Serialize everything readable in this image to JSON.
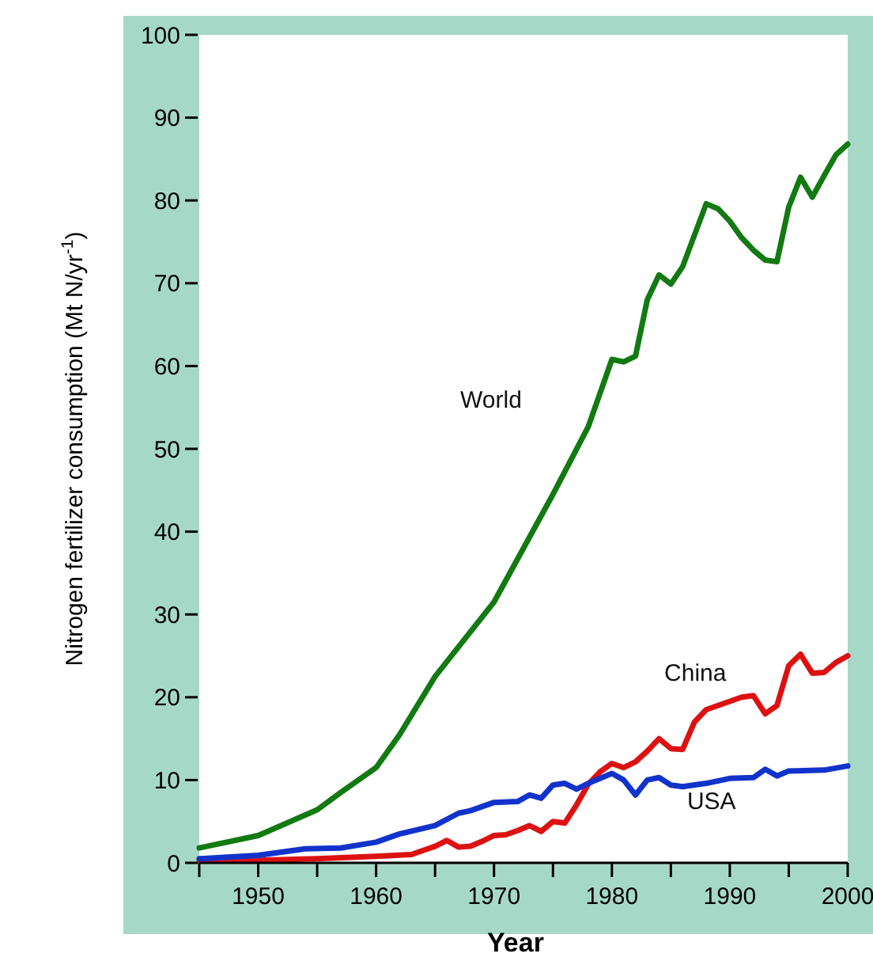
{
  "chart_data": {
    "type": "line",
    "xlabel": "Year",
    "ylabel": "Nitrogen fertilizer consumption (Mt N/yr$^{-1}$)",
    "xlim": [
      1945,
      2000
    ],
    "ylim": [
      0,
      100
    ],
    "xticks": [
      {
        "value": 1945,
        "label": null
      },
      1950,
      {
        "value": 1955,
        "label": null
      },
      1960,
      {
        "value": 1965,
        "label": null
      },
      1970,
      {
        "value": 1975,
        "label": null
      },
      1980,
      {
        "value": 1985,
        "label": null
      },
      1990,
      {
        "value": 1995,
        "label": null
      },
      2000
    ],
    "yticks": [
      0,
      10,
      20,
      30,
      40,
      50,
      60,
      70,
      80,
      90,
      100
    ],
    "grid": false,
    "legend": false,
    "line_style": "solid",
    "marker": "none",
    "series": [
      {
        "name": "World",
        "color": "#117a11",
        "x": [
          1945,
          1950,
          1955,
          1957,
          1960,
          1962,
          1965,
          1970,
          1975,
          1978,
          1980,
          1981,
          1982,
          1983,
          1984,
          1985,
          1986,
          1988,
          1989,
          1990,
          1991,
          1992,
          1993,
          1994,
          1995,
          1996,
          1997,
          1998,
          1999,
          2000
        ],
        "values": [
          1.8,
          3.3,
          6.4,
          8.5,
          11.5,
          15.5,
          22.5,
          31.5,
          44.5,
          52.7,
          60.8,
          60.5,
          61.2,
          68,
          71,
          69.9,
          72,
          79.6,
          79,
          77.5,
          75.5,
          74,
          72.8,
          72.6,
          79.2,
          82.8,
          80.4,
          83,
          85.5,
          86.8
        ]
      },
      {
        "name": "China",
        "color": "#dd1111",
        "x": [
          1945,
          1950,
          1955,
          1960,
          1963,
          1964,
          1965,
          1966,
          1967,
          1968,
          1969,
          1970,
          1971,
          1972,
          1973,
          1974,
          1975,
          1976,
          1977,
          1978,
          1979,
          1980,
          1981,
          1982,
          1983,
          1984,
          1985,
          1986,
          1987,
          1988,
          1989,
          1990,
          1991,
          1992,
          1993,
          1994,
          1995,
          1996,
          1997,
          1998,
          1999,
          2000
        ],
        "values": [
          0.3,
          0.3,
          0.5,
          0.8,
          1,
          1.5,
          2,
          2.7,
          1.9,
          2,
          2.6,
          3.3,
          3.4,
          3.9,
          4.5,
          3.8,
          5,
          4.8,
          7,
          9.5,
          11,
          12,
          11.5,
          12.2,
          13.5,
          15,
          13.8,
          13.7,
          17,
          18.5,
          19,
          19.5,
          20,
          20.2,
          18,
          19,
          23.8,
          25.2,
          22.9,
          23,
          24.2,
          25
        ]
      },
      {
        "name": "USA",
        "color": "#1133cc",
        "x": [
          1945,
          1950,
          1954,
          1957,
          1960,
          1962,
          1965,
          1967,
          1968,
          1970,
          1972,
          1973,
          1974,
          1975,
          1976,
          1977,
          1978,
          1979,
          1980,
          1981,
          1982,
          1983,
          1984,
          1985,
          1986,
          1988,
          1990,
          1992,
          1993,
          1994,
          1995,
          1998,
          2000
        ],
        "values": [
          0.5,
          0.9,
          1.7,
          1.8,
          2.5,
          3.5,
          4.5,
          6,
          6.3,
          7.3,
          7.4,
          8.2,
          7.8,
          9.4,
          9.6,
          8.9,
          9.6,
          10.2,
          10.8,
          10,
          8.2,
          10,
          10.3,
          9.4,
          9.2,
          9.6,
          10.2,
          10.3,
          11.3,
          10.5,
          11.1,
          11.2,
          11.7
        ]
      }
    ]
  }
}
